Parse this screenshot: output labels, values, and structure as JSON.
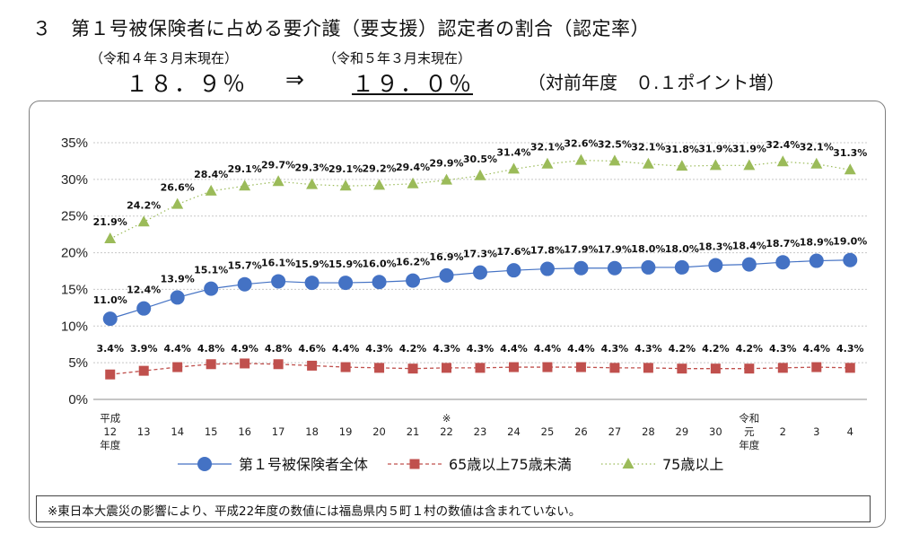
{
  "header": {
    "title": "３　第１号被保険者に占める要介護（要支援）認定者の割合（認定率）",
    "prev_date": "（令和４年３月末現在）",
    "prev_rate": "１８．９％",
    "arrow": "⇒",
    "curr_date": "（令和５年３月末現在）",
    "curr_rate": "１９．０％",
    "change": "（対前年度　０.１ポイント増）"
  },
  "note": "※東日本大震災の影響により、平成22年度の数値には福島県内５町１村の数値は含まれていない。",
  "chart_data": {
    "type": "line",
    "categories": [
      "平成12年度",
      "13",
      "14",
      "15",
      "16",
      "17",
      "18",
      "19",
      "20",
      "21",
      "※22",
      "23",
      "24",
      "25",
      "26",
      "27",
      "28",
      "29",
      "30",
      "令和元年度",
      "2",
      "3",
      "4"
    ],
    "category_lines": [
      [
        "平成",
        "12",
        "年度"
      ],
      [
        "13"
      ],
      [
        "14"
      ],
      [
        "15"
      ],
      [
        "16"
      ],
      [
        "17"
      ],
      [
        "18"
      ],
      [
        "19"
      ],
      [
        "20"
      ],
      [
        "21"
      ],
      [
        "※",
        "22"
      ],
      [
        "23"
      ],
      [
        "24"
      ],
      [
        "25"
      ],
      [
        "26"
      ],
      [
        "27"
      ],
      [
        "28"
      ],
      [
        "29"
      ],
      [
        "30"
      ],
      [
        "令和",
        "元",
        "年度"
      ],
      [
        "2"
      ],
      [
        "3"
      ],
      [
        "4"
      ]
    ],
    "ylim": [
      0,
      35
    ],
    "yticks": [
      "0%",
      "5%",
      "10%",
      "15%",
      "20%",
      "25%",
      "30%",
      "35%"
    ],
    "ytick_values": [
      0,
      5,
      10,
      15,
      20,
      25,
      30,
      35
    ],
    "grid": true,
    "legend_position": "bottom",
    "series": [
      {
        "name": "第１号被保険者全体",
        "marker": "circle",
        "line": "solid",
        "color": "#4472c4",
        "values": [
          11.0,
          12.4,
          13.9,
          15.1,
          15.7,
          16.1,
          15.9,
          15.9,
          16.0,
          16.2,
          16.9,
          17.3,
          17.6,
          17.8,
          17.9,
          17.9,
          18.0,
          18.0,
          18.3,
          18.4,
          18.7,
          18.9,
          19.0
        ],
        "labels": [
          "11.0%",
          "12.4%",
          "13.9%",
          "15.1%",
          "15.7%",
          "16.1%",
          "15.9%",
          "15.9%",
          "16.0%",
          "16.2%",
          "16.9%",
          "17.3%",
          "17.6%",
          "17.8%",
          "17.9%",
          "17.9%",
          "18.0%",
          "18.0%",
          "18.3%",
          "18.4%",
          "18.7%",
          "18.9%",
          "19.0%"
        ]
      },
      {
        "name": "65歳以上75歳未満",
        "marker": "square",
        "line": "dashed",
        "color": "#c0504d",
        "values": [
          3.4,
          3.9,
          4.4,
          4.8,
          4.9,
          4.8,
          4.6,
          4.4,
          4.3,
          4.2,
          4.3,
          4.3,
          4.4,
          4.4,
          4.4,
          4.3,
          4.3,
          4.2,
          4.2,
          4.2,
          4.3,
          4.4,
          4.3
        ],
        "labels": [
          "3.4%",
          "3.9%",
          "4.4%",
          "4.8%",
          "4.9%",
          "4.8%",
          "4.6%",
          "4.4%",
          "4.3%",
          "4.2%",
          "4.3%",
          "4.3%",
          "4.4%",
          "4.4%",
          "4.4%",
          "4.3%",
          "4.3%",
          "4.2%",
          "4.2%",
          "4.2%",
          "4.3%",
          "4.4%",
          "4.3%"
        ]
      },
      {
        "name": "75歳以上",
        "marker": "triangle",
        "line": "dotted",
        "color": "#9bbb59",
        "values": [
          21.9,
          24.2,
          26.6,
          28.4,
          29.1,
          29.7,
          29.3,
          29.1,
          29.2,
          29.4,
          29.9,
          30.5,
          31.4,
          32.1,
          32.6,
          32.5,
          32.1,
          31.8,
          31.9,
          31.9,
          32.4,
          32.1,
          31.3
        ],
        "labels": [
          "21.9%",
          "24.2%",
          "26.6%",
          "28.4%",
          "29.1%",
          "29.7%",
          "29.3%",
          "29.1%",
          "29.2%",
          "29.4%",
          "29.9%",
          "30.5%",
          "31.4%",
          "32.1%",
          "32.6%",
          "32.5%",
          "32.1%",
          "31.8%",
          "31.9%",
          "31.9%",
          "32.4%",
          "32.1%",
          "31.3%"
        ]
      }
    ]
  }
}
